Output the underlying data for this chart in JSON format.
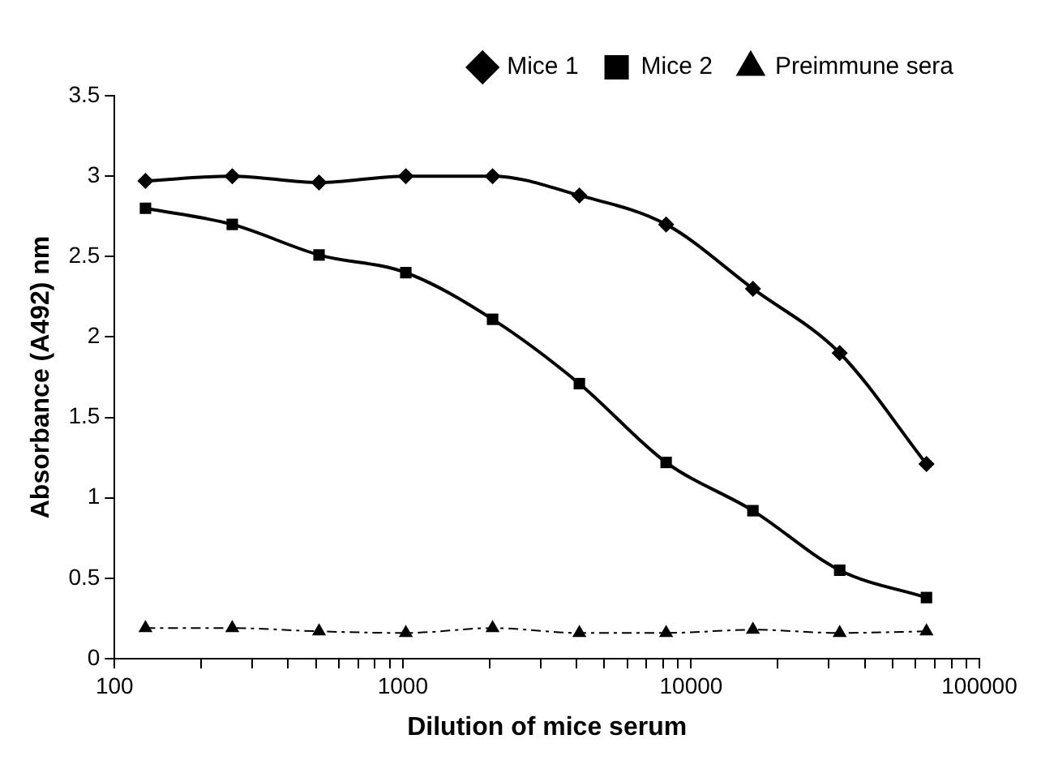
{
  "chart_data": {
    "type": "line",
    "xlabel": "Dilution of mice serum",
    "ylabel": "Absorbance (A492) nm",
    "log": "x",
    "x": [
      128,
      256,
      512,
      1024,
      2048,
      4096,
      8192,
      16384,
      32768,
      65536
    ],
    "series": [
      {
        "name": "Mice 1",
        "color": "#000000",
        "marker": "diamond",
        "line_style": "solid",
        "values": [
          2.97,
          3.0,
          2.96,
          3.0,
          3.0,
          2.88,
          2.7,
          2.3,
          1.9,
          1.21
        ]
      },
      {
        "name": "Mice 2",
        "color": "#000000",
        "marker": "square",
        "line_style": "solid",
        "values": [
          2.8,
          2.7,
          2.51,
          2.4,
          2.11,
          1.71,
          1.22,
          0.92,
          0.55,
          0.38
        ]
      },
      {
        "name": "Preimmune sera",
        "color": "#000000",
        "marker": "triangle",
        "line_style": "dashed",
        "values": [
          0.19,
          0.19,
          0.17,
          0.16,
          0.19,
          0.16,
          0.16,
          0.18,
          0.16,
          0.17
        ]
      }
    ],
    "xlim": [
      100,
      100000
    ],
    "xticks": [
      100,
      {
        "value": 200,
        "label": null
      },
      {
        "value": 300,
        "label": null
      },
      {
        "value": 400,
        "label": null
      },
      {
        "value": 500,
        "label": null
      },
      {
        "value": 600,
        "label": null
      },
      {
        "value": 700,
        "label": null
      },
      {
        "value": 800,
        "label": null
      },
      {
        "value": 900,
        "label": null
      },
      1000,
      {
        "value": 2000,
        "label": null
      },
      {
        "value": 3000,
        "label": null
      },
      {
        "value": 4000,
        "label": null
      },
      {
        "value": 5000,
        "label": null
      },
      {
        "value": 6000,
        "label": null
      },
      {
        "value": 7000,
        "label": null
      },
      {
        "value": 8000,
        "label": null
      },
      {
        "value": 9000,
        "label": null
      },
      10000,
      {
        "value": 20000,
        "label": null
      },
      {
        "value": 30000,
        "label": null
      },
      {
        "value": 40000,
        "label": null
      },
      {
        "value": 50000,
        "label": null
      },
      {
        "value": 60000,
        "label": null
      },
      {
        "value": 70000,
        "label": null
      },
      {
        "value": 80000,
        "label": null
      },
      {
        "value": 90000,
        "label": null
      },
      100000
    ],
    "ylim": [
      0,
      3.5
    ],
    "yticks": [
      0,
      0.5,
      1,
      1.5,
      2,
      2.5,
      3,
      3.5
    ],
    "grid": false,
    "legend": "top right"
  }
}
